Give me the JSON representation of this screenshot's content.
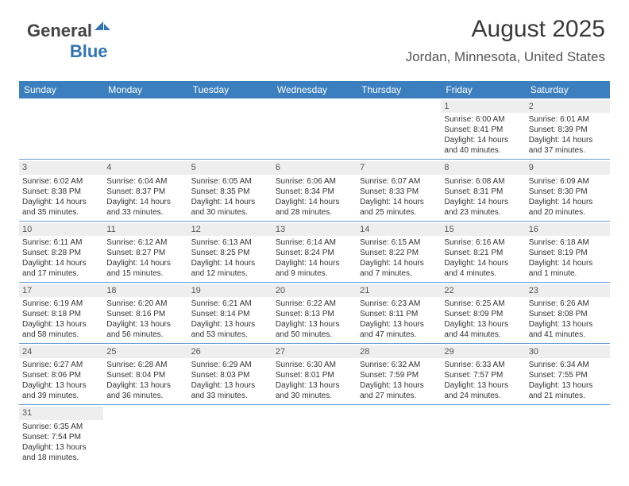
{
  "logo": {
    "text_dark": "General",
    "text_blue": "Blue"
  },
  "header": {
    "title": "August 2025",
    "location": "Jordan, Minnesota, United States"
  },
  "colors": {
    "header_bg": "#3b7fbf",
    "header_fg": "#ffffff",
    "row_divider": "#6a9fd4",
    "daynum_bg": "#eeeeee",
    "text": "#333333"
  },
  "weekdays": [
    "Sunday",
    "Monday",
    "Tuesday",
    "Wednesday",
    "Thursday",
    "Friday",
    "Saturday"
  ],
  "weeks": [
    [
      null,
      null,
      null,
      null,
      null,
      {
        "n": "1",
        "sr": "Sunrise: 6:00 AM",
        "....t": "Sunset: 8:41 PM",
        "d1": "Daylight: 14 hours",
        "d2": "and 40 minutes."
      },
      {
        "n": "2",
        "sr": "Sunrise: 6:01 AM",
        "ss": "Sunset: 8:39 PM",
        "d1": "Daylight: 14 hours",
        "d2": "and 37 minutes."
      }
    ],
    [
      {
        "n": "3",
        "sr": "Sunrise: 6:02 AM",
        "ss": "Sunset: 8:38 PM",
        "d1": "Daylight: 14 hours",
        "d2": "and 35 minutes."
      },
      {
        "n": "4",
        "sr": "Sunrise: 6:04 AM",
        "ss": "Sunset: 8:37 PM",
        "d1": "Daylight: 14 hours",
        "d2": "and 33 minutes."
      },
      {
        "n": "5",
        "sr": "Sunrise: 6:05 AM",
        "ss": "Sunset: 8:35 PM",
        "d1": "Daylight: 14 hours",
        "d2": "and 30 minutes."
      },
      {
        "n": "6",
        "sr": "Sunrise: 6:06 AM",
        "ss": "Sunset: 8:34 PM",
        "d1": "Daylight: 14 hours",
        "d2": "and 28 minutes."
      },
      {
        "n": "7",
        "sr": "Sunrise: 6:07 AM",
        "ss": "Sunset: 8:33 PM",
        "d1": "Daylight: 14 hours",
        "d2": "and 25 minutes."
      },
      {
        "n": "8",
        "sr": "Sunrise: 6:08 AM",
        "ss": "Sunset: 8:31 PM",
        "d1": "Daylight: 14 hours",
        "d2": "and 23 minutes."
      },
      {
        "n": "9",
        "sr": "Sunrise: 6:09 AM",
        "ss": "Sunset: 8:30 PM",
        "d1": "Daylight: 14 hours",
        "d2": "and 20 minutes."
      }
    ],
    [
      {
        "n": "10",
        "sr": "Sunrise: 6:11 AM",
        "ss": "Sunset: 8:28 PM",
        "d1": "Daylight: 14 hours",
        "d2": "and 17 minutes."
      },
      {
        "n": "11",
        "sr": "Sunrise: 6:12 AM",
        "ss": "Sunset: 8:27 PM",
        "d1": "Daylight: 14 hours",
        "d2": "and 15 minutes."
      },
      {
        "n": "12",
        "sr": "Sunrise: 6:13 AM",
        "ss": "Sunset: 8:25 PM",
        "d1": "Daylight: 14 hours",
        "d2": "and 12 minutes."
      },
      {
        "n": "13",
        "sr": "Sunrise: 6:14 AM",
        "ss": "Sunset: 8:24 PM",
        "d1": "Daylight: 14 hours",
        "d2": "and 9 minutes."
      },
      {
        "n": "14",
        "sr": "Sunrise: 6:15 AM",
        "ss": "Sunset: 8:22 PM",
        "d1": "Daylight: 14 hours",
        "d2": "and 7 minutes."
      },
      {
        "n": "15",
        "sr": "Sunrise: 6:16 AM",
        "ss": "Sunset: 8:21 PM",
        "d1": "Daylight: 14 hours",
        "d2": "and 4 minutes."
      },
      {
        "n": "16",
        "sr": "Sunrise: 6:18 AM",
        "ss": "Sunset: 8:19 PM",
        "d1": "Daylight: 14 hours",
        "d2": "and 1 minute."
      }
    ],
    [
      {
        "n": "17",
        "sr": "Sunrise: 6:19 AM",
        "ss": "Sunset: 8:18 PM",
        "d1": "Daylight: 13 hours",
        "d2": "and 58 minutes."
      },
      {
        "n": "18",
        "sr": "Sunrise: 6:20 AM",
        "ss": "Sunset: 8:16 PM",
        "d1": "Daylight: 13 hours",
        "d2": "and 56 minutes."
      },
      {
        "n": "19",
        "sr": "Sunrise: 6:21 AM",
        "ss": "Sunset: 8:14 PM",
        "d1": "Daylight: 13 hours",
        "d2": "and 53 minutes."
      },
      {
        "n": "20",
        "sr": "Sunrise: 6:22 AM",
        "ss": "Sunset: 8:13 PM",
        "d1": "Daylight: 13 hours",
        "d2": "and 50 minutes."
      },
      {
        "n": "21",
        "sr": "Sunrise: 6:23 AM",
        "ss": "Sunset: 8:11 PM",
        "d1": "Daylight: 13 hours",
        "d2": "and 47 minutes."
      },
      {
        "n": "22",
        "sr": "Sunrise: 6:25 AM",
        "ss": "Sunset: 8:09 PM",
        "d1": "Daylight: 13 hours",
        "d2": "and 44 minutes."
      },
      {
        "n": "23",
        "sr": "Sunrise: 6:26 AM",
        "ss": "Sunset: 8:08 PM",
        "d1": "Daylight: 13 hours",
        "d2": "and 41 minutes."
      }
    ],
    [
      {
        "n": "24",
        "sr": "Sunrise: 6:27 AM",
        "ss": "Sunset: 8:06 PM",
        "d1": "Daylight: 13 hours",
        "d2": "and 39 minutes."
      },
      {
        "n": "25",
        "sr": "Sunrise: 6:28 AM",
        "ss": "Sunset: 8:04 PM",
        "d1": "Daylight: 13 hours",
        "d2": "and 36 minutes."
      },
      {
        "n": "26",
        "sr": "Sunrise: 6:29 AM",
        "ss": "Sunset: 8:03 PM",
        "d1": "Daylight: 13 hours",
        "d2": "and 33 minutes."
      },
      {
        "n": "27",
        "sr": "Sunrise: 6:30 AM",
        "ss": "Sunset: 8:01 PM",
        "d1": "Daylight: 13 hours",
        "d2": "and 30 minutes."
      },
      {
        "n": "28",
        "sr": "Sunrise: 6:32 AM",
        "ss": "Sunset: 7:59 PM",
        "d1": "Daylight: 13 hours",
        "d2": "and 27 minutes."
      },
      {
        "n": "29",
        "sr": "Sunrise: 6:33 AM",
        "ss": "Sunset: 7:57 PM",
        "d1": "Daylight: 13 hours",
        "d2": "and 24 minutes."
      },
      {
        "n": "30",
        "sr": "Sunrise: 6:34 AM",
        "ss": "Sunset: 7:55 PM",
        "d1": "Daylight: 13 hours",
        "d2": "and 21 minutes."
      }
    ],
    [
      {
        "n": "31",
        "sr": "Sunrise: 6:35 AM",
        "ss": "Sunset: 7:54 PM",
        "d1": "Daylight: 13 hours",
        "d2": "and 18 minutes."
      },
      null,
      null,
      null,
      null,
      null,
      null
    ]
  ]
}
